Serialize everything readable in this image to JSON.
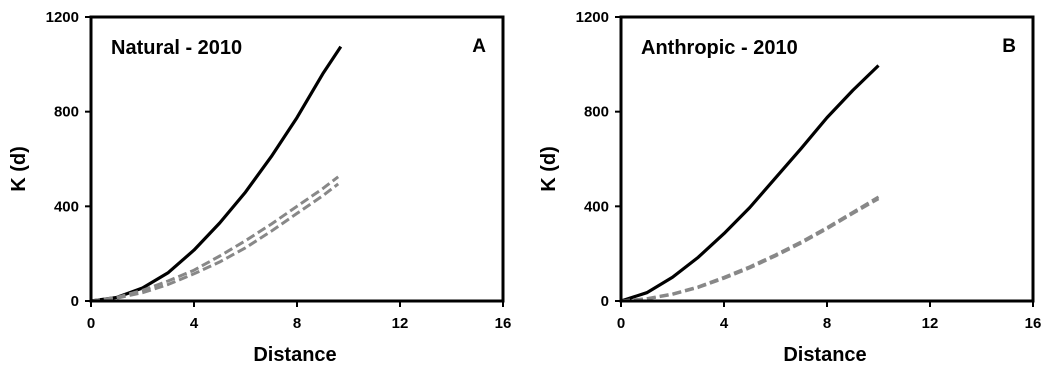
{
  "chart_data": [
    {
      "type": "line",
      "title": "Natural - 2010",
      "panel_label": "A",
      "xlabel": "Distance",
      "ylabel": "K (d)",
      "xlim": [
        0,
        16
      ],
      "ylim": [
        0,
        1200
      ],
      "xticks": [
        "0",
        "4",
        "8",
        "12",
        "16"
      ],
      "yticks": [
        "0",
        "400",
        "800",
        "1200"
      ],
      "grid": false,
      "legend": "none",
      "series": [
        {
          "style": "solid",
          "color": "#000000",
          "x": [
            0,
            1,
            2,
            3,
            4,
            5,
            6,
            7,
            8,
            9,
            9.7
          ],
          "y": [
            0,
            15,
            55,
            120,
            215,
            330,
            460,
            610,
            775,
            960,
            1075
          ]
        },
        {
          "style": "dashed",
          "color": "#888888",
          "x": [
            0,
            1,
            2,
            3,
            4,
            5,
            6,
            7,
            8,
            9,
            9.6
          ],
          "y": [
            0,
            15,
            45,
            85,
            130,
            190,
            255,
            325,
            400,
            475,
            525
          ]
        },
        {
          "style": "dashed",
          "color": "#888888",
          "x": [
            0,
            1,
            2,
            3,
            4,
            5,
            6,
            7,
            8,
            9,
            9.6
          ],
          "y": [
            0,
            12,
            35,
            70,
            115,
            165,
            225,
            295,
            370,
            445,
            495
          ]
        }
      ]
    },
    {
      "type": "line",
      "title": "Anthropic - 2010",
      "panel_label": "B",
      "xlabel": "Distance",
      "ylabel": "K (d)",
      "xlim": [
        0,
        16
      ],
      "ylim": [
        0,
        1200
      ],
      "xticks": [
        "0",
        "4",
        "8",
        "12",
        "16"
      ],
      "yticks": [
        "0",
        "400",
        "800",
        "1200"
      ],
      "grid": false,
      "legend": "none",
      "series": [
        {
          "style": "solid",
          "color": "#000000",
          "x": [
            0,
            1,
            2,
            3,
            4,
            5,
            6,
            7,
            8,
            9,
            10
          ],
          "y": [
            0,
            35,
            100,
            185,
            285,
            395,
            520,
            645,
            775,
            890,
            995
          ]
        },
        {
          "style": "dashed",
          "color": "#888888",
          "x": [
            0,
            1,
            2,
            3,
            4,
            5,
            6,
            7,
            8,
            9,
            10
          ],
          "y": [
            0,
            10,
            30,
            60,
            100,
            145,
            195,
            250,
            310,
            375,
            440
          ]
        },
        {
          "style": "dashed",
          "color": "#888888",
          "x": [
            0,
            1,
            2,
            3,
            4,
            5,
            6,
            7,
            8,
            9,
            10
          ],
          "y": [
            0,
            9,
            28,
            57,
            96,
            140,
            190,
            245,
            305,
            370,
            432
          ]
        }
      ]
    }
  ]
}
